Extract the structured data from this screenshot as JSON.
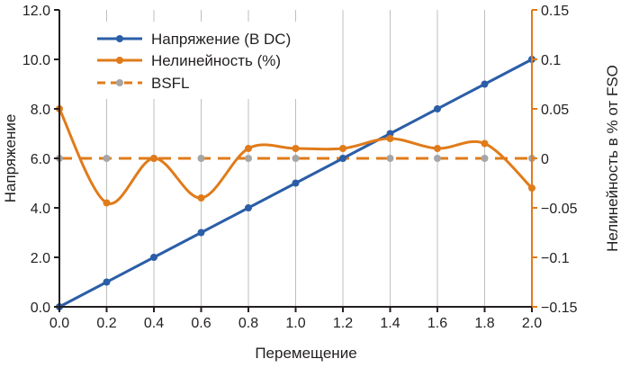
{
  "chart_data": {
    "type": "line",
    "title": "",
    "xlabel": "Перемещение",
    "ylabel_left": "Напряжение",
    "ylabel_right": "Нелинейность в % от FSO",
    "xlim": [
      0,
      2.0
    ],
    "ylim_left": [
      0,
      12
    ],
    "ylim_right": [
      -0.15,
      0.15
    ],
    "x_ticks": [
      "0.0",
      "0.2",
      "0.4",
      "0.6",
      "0.8",
      "1.0",
      "1.2",
      "1.4",
      "1.6",
      "1.8",
      "2.0"
    ],
    "y_left_ticks": [
      "0.0",
      "2.0",
      "4.0",
      "6.0",
      "8.0",
      "10.0",
      "12.0"
    ],
    "y_right_ticks": [
      "−0.15",
      "−0.1",
      "−0.05",
      "0",
      "0.05",
      "0.1",
      "0.15"
    ],
    "grid": "vertical",
    "legend_position": "top-left",
    "x": [
      0.0,
      0.2,
      0.4,
      0.6,
      0.8,
      1.0,
      1.2,
      1.4,
      1.6,
      1.8,
      2.0
    ],
    "series": [
      {
        "name": "Напряжение (В DC)",
        "axis": "left",
        "color": "#2b5ea7",
        "values": [
          0.0,
          1.0,
          2.0,
          3.0,
          4.0,
          5.0,
          6.0,
          7.0,
          8.0,
          9.0,
          10.0
        ]
      },
      {
        "name": "Нелинейность (%)",
        "axis": "right",
        "color": "#e07b1a",
        "values": [
          0.05,
          -0.045,
          0.0,
          -0.04,
          0.01,
          0.01,
          0.01,
          0.02,
          0.01,
          0.015,
          -0.03
        ]
      },
      {
        "name": "BSFL",
        "axis": "right",
        "color": "#e07b1a",
        "marker_color": "#a6a6a6",
        "dashed": true,
        "values": [
          0,
          0,
          0,
          0,
          0,
          0,
          0,
          0,
          0,
          0,
          0
        ]
      }
    ],
    "colors": {
      "axis_left": "#231f20",
      "axis_right": "#e07b1a",
      "grid": "#bfbfbf"
    }
  }
}
